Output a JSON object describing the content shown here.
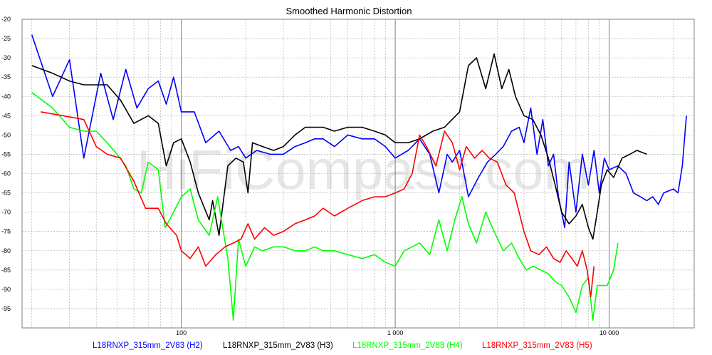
{
  "chart_data": {
    "type": "line",
    "title": "Smoothed Harmonic Distortion",
    "watermark": "HiFiCompass.com",
    "x_scale": "log",
    "xlim": [
      18,
      25000
    ],
    "ylim": [
      -100,
      -20
    ],
    "y_ticks": [
      -20,
      -25,
      -30,
      -35,
      -40,
      -45,
      -50,
      -55,
      -60,
      -65,
      -70,
      -75,
      -80,
      -85,
      -90,
      -95
    ],
    "x_major_ticks": [
      {
        "value": 100,
        "label": "100"
      },
      {
        "value": 1000,
        "label": "1 000"
      },
      {
        "value": 10000,
        "label": "10 000"
      }
    ],
    "grid": true,
    "legend_placement": "bottom",
    "series": [
      {
        "name": "L18RNXP_315mm_2V83 (H2)",
        "color": "#0000ff",
        "points": [
          [
            20,
            -24
          ],
          [
            25,
            -40
          ],
          [
            30,
            -30.5
          ],
          [
            35,
            -56
          ],
          [
            42,
            -34
          ],
          [
            48,
            -46
          ],
          [
            55,
            -33
          ],
          [
            62,
            -43
          ],
          [
            70,
            -38
          ],
          [
            78,
            -36
          ],
          [
            85,
            -42
          ],
          [
            92,
            -35
          ],
          [
            100,
            -44
          ],
          [
            115,
            -44
          ],
          [
            130,
            -52
          ],
          [
            150,
            -49
          ],
          [
            170,
            -54
          ],
          [
            185,
            -53
          ],
          [
            200,
            -56
          ],
          [
            225,
            -54
          ],
          [
            260,
            -55
          ],
          [
            300,
            -55
          ],
          [
            340,
            -53
          ],
          [
            380,
            -52
          ],
          [
            420,
            -51
          ],
          [
            460,
            -51
          ],
          [
            520,
            -53
          ],
          [
            600,
            -50
          ],
          [
            700,
            -51
          ],
          [
            800,
            -51
          ],
          [
            900,
            -53
          ],
          [
            1000,
            -56
          ],
          [
            1150,
            -54
          ],
          [
            1300,
            -51
          ],
          [
            1450,
            -55
          ],
          [
            1600,
            -65
          ],
          [
            1750,
            -55
          ],
          [
            1850,
            -57
          ],
          [
            2000,
            -54
          ],
          [
            2200,
            -66
          ],
          [
            2450,
            -61
          ],
          [
            2700,
            -57
          ],
          [
            2950,
            -55
          ],
          [
            3200,
            -53
          ],
          [
            3500,
            -49
          ],
          [
            3800,
            -48
          ],
          [
            4000,
            -52
          ],
          [
            4300,
            -43
          ],
          [
            4600,
            -55
          ],
          [
            4900,
            -46
          ],
          [
            5200,
            -58
          ],
          [
            5500,
            -55
          ],
          [
            5800,
            -66
          ],
          [
            6200,
            -74
          ],
          [
            6500,
            -57
          ],
          [
            7000,
            -70
          ],
          [
            7500,
            -55
          ],
          [
            8000,
            -63
          ],
          [
            8500,
            -54
          ],
          [
            9000,
            -65
          ],
          [
            9500,
            -56
          ],
          [
            10000,
            -59
          ],
          [
            11000,
            -58
          ],
          [
            12000,
            -60
          ],
          [
            13000,
            -65
          ],
          [
            14000,
            -66
          ],
          [
            15000,
            -67
          ],
          [
            16000,
            -66
          ],
          [
            17000,
            -68
          ],
          [
            18000,
            -65
          ],
          [
            20000,
            -64
          ],
          [
            21000,
            -65
          ],
          [
            22000,
            -58
          ],
          [
            23000,
            -45
          ]
        ]
      },
      {
        "name": "L18RNXP_315mm_2V83 (H3)",
        "color": "#000000",
        "points": [
          [
            20,
            -32
          ],
          [
            25,
            -34
          ],
          [
            30,
            -36
          ],
          [
            35,
            -37
          ],
          [
            45,
            -37
          ],
          [
            52,
            -41
          ],
          [
            60,
            -47
          ],
          [
            70,
            -45
          ],
          [
            78,
            -47
          ],
          [
            85,
            -58
          ],
          [
            92,
            -52
          ],
          [
            100,
            -51
          ],
          [
            110,
            -57
          ],
          [
            120,
            -65
          ],
          [
            135,
            -72
          ],
          [
            140,
            -67
          ],
          [
            150,
            -76
          ],
          [
            165,
            -58
          ],
          [
            180,
            -56
          ],
          [
            195,
            -57
          ],
          [
            205,
            -65
          ],
          [
            215,
            -52
          ],
          [
            240,
            -53
          ],
          [
            270,
            -54
          ],
          [
            300,
            -53
          ],
          [
            340,
            -50
          ],
          [
            380,
            -48
          ],
          [
            420,
            -48
          ],
          [
            460,
            -48
          ],
          [
            520,
            -49
          ],
          [
            600,
            -48
          ],
          [
            700,
            -48
          ],
          [
            800,
            -49
          ],
          [
            900,
            -50
          ],
          [
            1000,
            -52
          ],
          [
            1150,
            -52
          ],
          [
            1300,
            -51
          ],
          [
            1500,
            -49
          ],
          [
            1700,
            -48
          ],
          [
            2000,
            -44
          ],
          [
            2200,
            -32
          ],
          [
            2400,
            -30
          ],
          [
            2650,
            -38
          ],
          [
            2900,
            -29
          ],
          [
            3150,
            -38
          ],
          [
            3400,
            -33
          ],
          [
            3650,
            -40
          ],
          [
            4000,
            -45
          ],
          [
            4400,
            -46
          ],
          [
            4800,
            -50
          ],
          [
            5200,
            -56
          ],
          [
            5600,
            -63
          ],
          [
            6000,
            -70
          ],
          [
            6500,
            -73
          ],
          [
            7000,
            -71
          ],
          [
            7500,
            -68
          ],
          [
            8000,
            -74
          ],
          [
            8400,
            -77
          ],
          [
            8800,
            -70
          ],
          [
            9200,
            -63
          ],
          [
            9800,
            -59
          ],
          [
            10500,
            -61
          ],
          [
            11500,
            -56
          ],
          [
            12500,
            -55
          ],
          [
            13500,
            -54
          ],
          [
            15000,
            -55
          ]
        ]
      },
      {
        "name": "L18RNXP_315mm_2V83 (H4)",
        "color": "#00ff00",
        "points": [
          [
            20,
            -39
          ],
          [
            25,
            -43
          ],
          [
            30,
            -48
          ],
          [
            35,
            -49
          ],
          [
            40,
            -49
          ],
          [
            45,
            -52
          ],
          [
            50,
            -55
          ],
          [
            55,
            -58
          ],
          [
            60,
            -64
          ],
          [
            65,
            -65
          ],
          [
            70,
            -57
          ],
          [
            78,
            -59
          ],
          [
            84,
            -74
          ],
          [
            90,
            -71
          ],
          [
            100,
            -66
          ],
          [
            110,
            -64
          ],
          [
            120,
            -72
          ],
          [
            135,
            -76
          ],
          [
            140,
            -72
          ],
          [
            148,
            -66
          ],
          [
            155,
            -73
          ],
          [
            165,
            -82
          ],
          [
            175,
            -98
          ],
          [
            185,
            -77
          ],
          [
            200,
            -84
          ],
          [
            220,
            -79
          ],
          [
            240,
            -80
          ],
          [
            270,
            -79
          ],
          [
            300,
            -79
          ],
          [
            340,
            -80
          ],
          [
            380,
            -80
          ],
          [
            420,
            -79
          ],
          [
            460,
            -80
          ],
          [
            520,
            -80
          ],
          [
            600,
            -81
          ],
          [
            700,
            -82
          ],
          [
            800,
            -81
          ],
          [
            900,
            -83
          ],
          [
            1000,
            -84
          ],
          [
            1100,
            -80
          ],
          [
            1200,
            -79
          ],
          [
            1300,
            -78
          ],
          [
            1450,
            -81
          ],
          [
            1600,
            -72
          ],
          [
            1750,
            -80
          ],
          [
            1900,
            -72
          ],
          [
            2050,
            -66
          ],
          [
            2200,
            -73
          ],
          [
            2400,
            -78
          ],
          [
            2650,
            -70
          ],
          [
            2900,
            -75
          ],
          [
            3200,
            -80
          ],
          [
            3500,
            -78
          ],
          [
            3800,
            -82
          ],
          [
            4100,
            -85
          ],
          [
            4400,
            -84
          ],
          [
            4800,
            -85
          ],
          [
            5200,
            -86
          ],
          [
            5600,
            -88
          ],
          [
            6000,
            -89
          ],
          [
            6500,
            -92
          ],
          [
            7000,
            -96
          ],
          [
            7500,
            -89
          ],
          [
            8000,
            -87
          ],
          [
            8400,
            -98
          ],
          [
            8800,
            -89
          ],
          [
            9200,
            -89
          ],
          [
            9800,
            -89
          ],
          [
            10500,
            -85
          ],
          [
            11000,
            -78
          ]
        ]
      },
      {
        "name": "L18RNXP_315mm_2V83 (H5)",
        "color": "#ff0000",
        "points": [
          [
            22,
            -44
          ],
          [
            28,
            -45
          ],
          [
            35,
            -46
          ],
          [
            40,
            -53
          ],
          [
            45,
            -55
          ],
          [
            52,
            -56
          ],
          [
            60,
            -62
          ],
          [
            68,
            -69
          ],
          [
            78,
            -69
          ],
          [
            85,
            -73
          ],
          [
            95,
            -76
          ],
          [
            100,
            -80
          ],
          [
            110,
            -82
          ],
          [
            120,
            -79
          ],
          [
            130,
            -84
          ],
          [
            145,
            -81
          ],
          [
            160,
            -79
          ],
          [
            175,
            -78
          ],
          [
            190,
            -77
          ],
          [
            205,
            -73
          ],
          [
            220,
            -77
          ],
          [
            245,
            -74
          ],
          [
            270,
            -76
          ],
          [
            300,
            -75
          ],
          [
            340,
            -73
          ],
          [
            380,
            -72
          ],
          [
            420,
            -71
          ],
          [
            460,
            -69
          ],
          [
            520,
            -71
          ],
          [
            600,
            -69
          ],
          [
            700,
            -67
          ],
          [
            800,
            -66
          ],
          [
            900,
            -66
          ],
          [
            1000,
            -65
          ],
          [
            1100,
            -64
          ],
          [
            1200,
            -60
          ],
          [
            1300,
            -50
          ],
          [
            1400,
            -53
          ],
          [
            1550,
            -58
          ],
          [
            1700,
            -49
          ],
          [
            1850,
            -52
          ],
          [
            2000,
            -59
          ],
          [
            2150,
            -53
          ],
          [
            2350,
            -56
          ],
          [
            2550,
            -54
          ],
          [
            2750,
            -56
          ],
          [
            3000,
            -57
          ],
          [
            3300,
            -63
          ],
          [
            3600,
            -65
          ],
          [
            4000,
            -75
          ],
          [
            4300,
            -80
          ],
          [
            4700,
            -81
          ],
          [
            5100,
            -79
          ],
          [
            5500,
            -82
          ],
          [
            5900,
            -83
          ],
          [
            6300,
            -80
          ],
          [
            6700,
            -82
          ],
          [
            7100,
            -84
          ],
          [
            7500,
            -80
          ],
          [
            7900,
            -85
          ],
          [
            8200,
            -92
          ],
          [
            8500,
            -84
          ]
        ]
      }
    ]
  }
}
